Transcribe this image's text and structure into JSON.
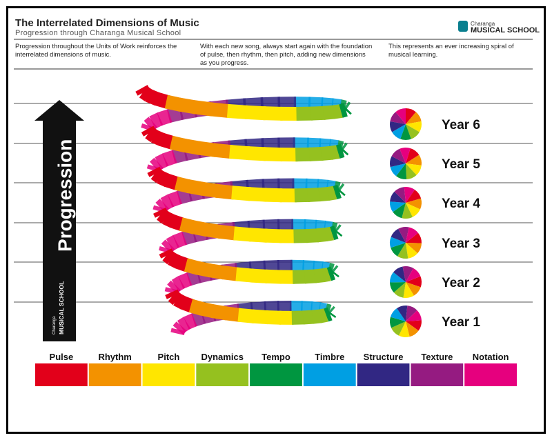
{
  "header": {
    "title": "The Interrelated Dimensions of Music",
    "subtitle": "Progression through Charanga Musical School"
  },
  "logo": {
    "brand": "Charanga",
    "product": "MUSICAL SCHOOL"
  },
  "intro": [
    "Progression throughout the Units of Work reinforces the interrelated dimensions of music.",
    "With each new song, always start again with the foundation of pulse, then rhythm, then pitch, adding new dimensions as you progress.",
    "This represents an ever increasing spiral of musical learning."
  ],
  "arrow": {
    "label": "Progression",
    "brand": "Charanga",
    "product": "MUSICAL SCHOOL"
  },
  "years": [
    "Year 6",
    "Year 5",
    "Year 4",
    "Year 3",
    "Year 2",
    "Year 1"
  ],
  "dimensions": [
    {
      "name": "Pulse",
      "color": "#e2001a"
    },
    {
      "name": "Rhythm",
      "color": "#f39200"
    },
    {
      "name": "Pitch",
      "color": "#ffe600"
    },
    {
      "name": "Dynamics",
      "color": "#95c11f"
    },
    {
      "name": "Tempo",
      "color": "#009640"
    },
    {
      "name": "Timbre",
      "color": "#009fe3"
    },
    {
      "name": "Structure",
      "color": "#312783"
    },
    {
      "name": "Texture",
      "color": "#951b81"
    },
    {
      "name": "Notation",
      "color": "#e6007e"
    }
  ]
}
